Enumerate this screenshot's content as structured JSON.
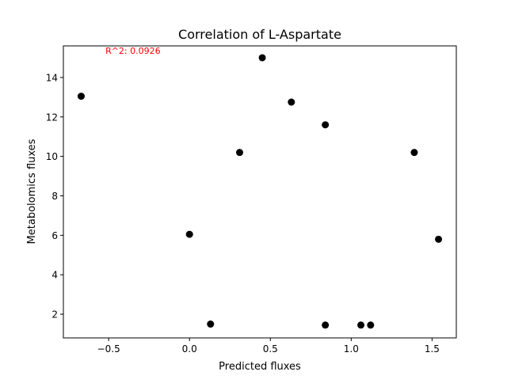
{
  "chart_data": {
    "type": "scatter",
    "title": "Correlation of L-Aspartate",
    "xlabel": "Predicted fluxes",
    "ylabel": "Metabolomics fluxes",
    "annotation": {
      "text": "R^2: 0.0926",
      "color": "#ff0000",
      "x": -0.52,
      "y": 15.2
    },
    "xlim": [
      -0.78,
      1.65
    ],
    "ylim": [
      0.8,
      15.6
    ],
    "xticks": [
      -0.5,
      0.0,
      0.5,
      1.0,
      1.5
    ],
    "xtick_labels": [
      "−0.5",
      "0.0",
      "0.5",
      "1.0",
      "1.5"
    ],
    "yticks": [
      2,
      4,
      6,
      8,
      10,
      12,
      14
    ],
    "ytick_labels": [
      "2",
      "4",
      "6",
      "8",
      "10",
      "12",
      "14"
    ],
    "grid": false,
    "marker_color": "#000000",
    "points": [
      {
        "x": -0.67,
        "y": 13.05
      },
      {
        "x": 0.0,
        "y": 6.05
      },
      {
        "x": 0.13,
        "y": 1.5
      },
      {
        "x": 0.31,
        "y": 10.2
      },
      {
        "x": 0.45,
        "y": 15.0
      },
      {
        "x": 0.63,
        "y": 12.75
      },
      {
        "x": 0.84,
        "y": 11.6
      },
      {
        "x": 0.84,
        "y": 1.45
      },
      {
        "x": 1.06,
        "y": 1.45
      },
      {
        "x": 1.12,
        "y": 1.45
      },
      {
        "x": 1.39,
        "y": 10.2
      },
      {
        "x": 1.54,
        "y": 5.8
      }
    ]
  }
}
